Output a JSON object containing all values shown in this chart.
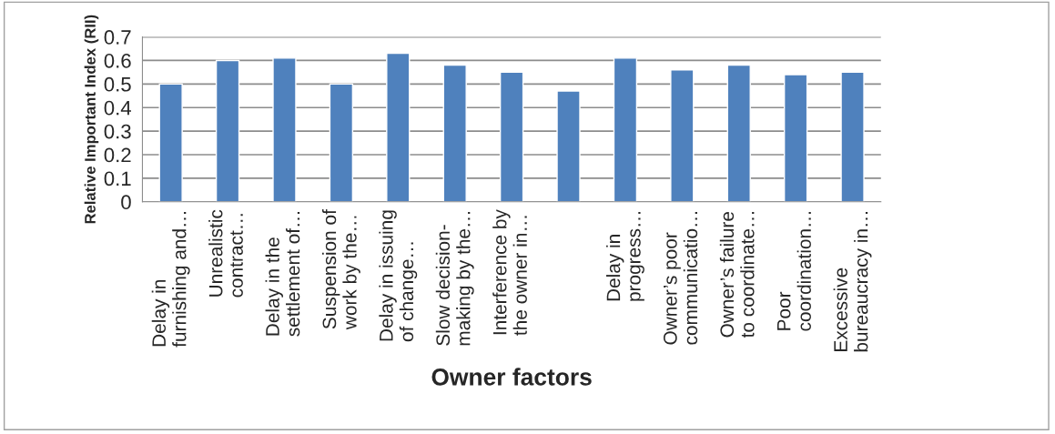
{
  "chart_data": {
    "type": "bar",
    "xlabel": "Owner factors",
    "ylabel": "Relative Important Index (RII)",
    "categories": [
      "Delay in\nfurnishing and…",
      "Unrealistic\ncontract…",
      "Delay in the\nsettlement of…",
      "Suspension of\nwork by the…",
      "Delay in issuing\nof change…",
      "Slow decision-\nmaking by the…",
      "Interference by\nthe owner in…",
      null,
      "Delay in\nprogress…",
      "Owner’s poor\ncommunicatio…",
      "Owner’s failure\nto coordinate…",
      "Poor\ncoordination…",
      "Excessive\nbureaucracy in…"
    ],
    "values": [
      0.5,
      0.6,
      0.61,
      0.5,
      0.63,
      0.58,
      0.55,
      0.47,
      0.61,
      0.56,
      0.58,
      0.54,
      0.55
    ],
    "color": "#4f81bd",
    "ylim": [
      0,
      0.7
    ],
    "yticks": [
      {
        "value": 0,
        "label": "0"
      },
      0.1,
      0.2,
      0.3,
      0.4,
      0.5,
      0.6,
      0.7
    ],
    "grid": "y",
    "legend": false
  }
}
